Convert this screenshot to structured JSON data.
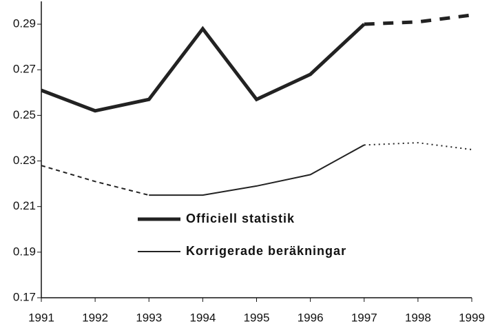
{
  "chart_data": {
    "type": "line",
    "x": [
      1991,
      1992,
      1993,
      1994,
      1995,
      1996,
      1997,
      1998,
      1999
    ],
    "series": [
      {
        "name": "Officiell statistik",
        "color": "#222222",
        "width": 5,
        "values": [
          0.261,
          0.252,
          0.257,
          0.288,
          0.257,
          0.268,
          0.29,
          0.291,
          0.294
        ],
        "segment_styles": [
          "solid",
          "solid",
          "solid",
          "solid",
          "solid",
          "solid",
          "dashed",
          "dashed"
        ]
      },
      {
        "name": "Korrigerade beräkningar",
        "color": "#222222",
        "width": 2,
        "values": [
          0.228,
          0.221,
          0.215,
          0.215,
          0.219,
          0.224,
          0.237,
          0.238,
          0.235
        ],
        "segment_styles": [
          "dashed",
          "dashed",
          "solid",
          "solid",
          "solid",
          "solid",
          "dotted",
          "dotted"
        ]
      }
    ],
    "xlim": [
      1991,
      1999
    ],
    "xticks": [
      1991,
      1992,
      1993,
      1994,
      1995,
      1996,
      1997,
      1998,
      1999
    ],
    "ylim": [
      0.17,
      0.3
    ],
    "yticks": [
      0.17,
      0.19,
      0.21,
      0.23,
      0.25,
      0.27,
      0.29
    ],
    "legend": "center"
  }
}
